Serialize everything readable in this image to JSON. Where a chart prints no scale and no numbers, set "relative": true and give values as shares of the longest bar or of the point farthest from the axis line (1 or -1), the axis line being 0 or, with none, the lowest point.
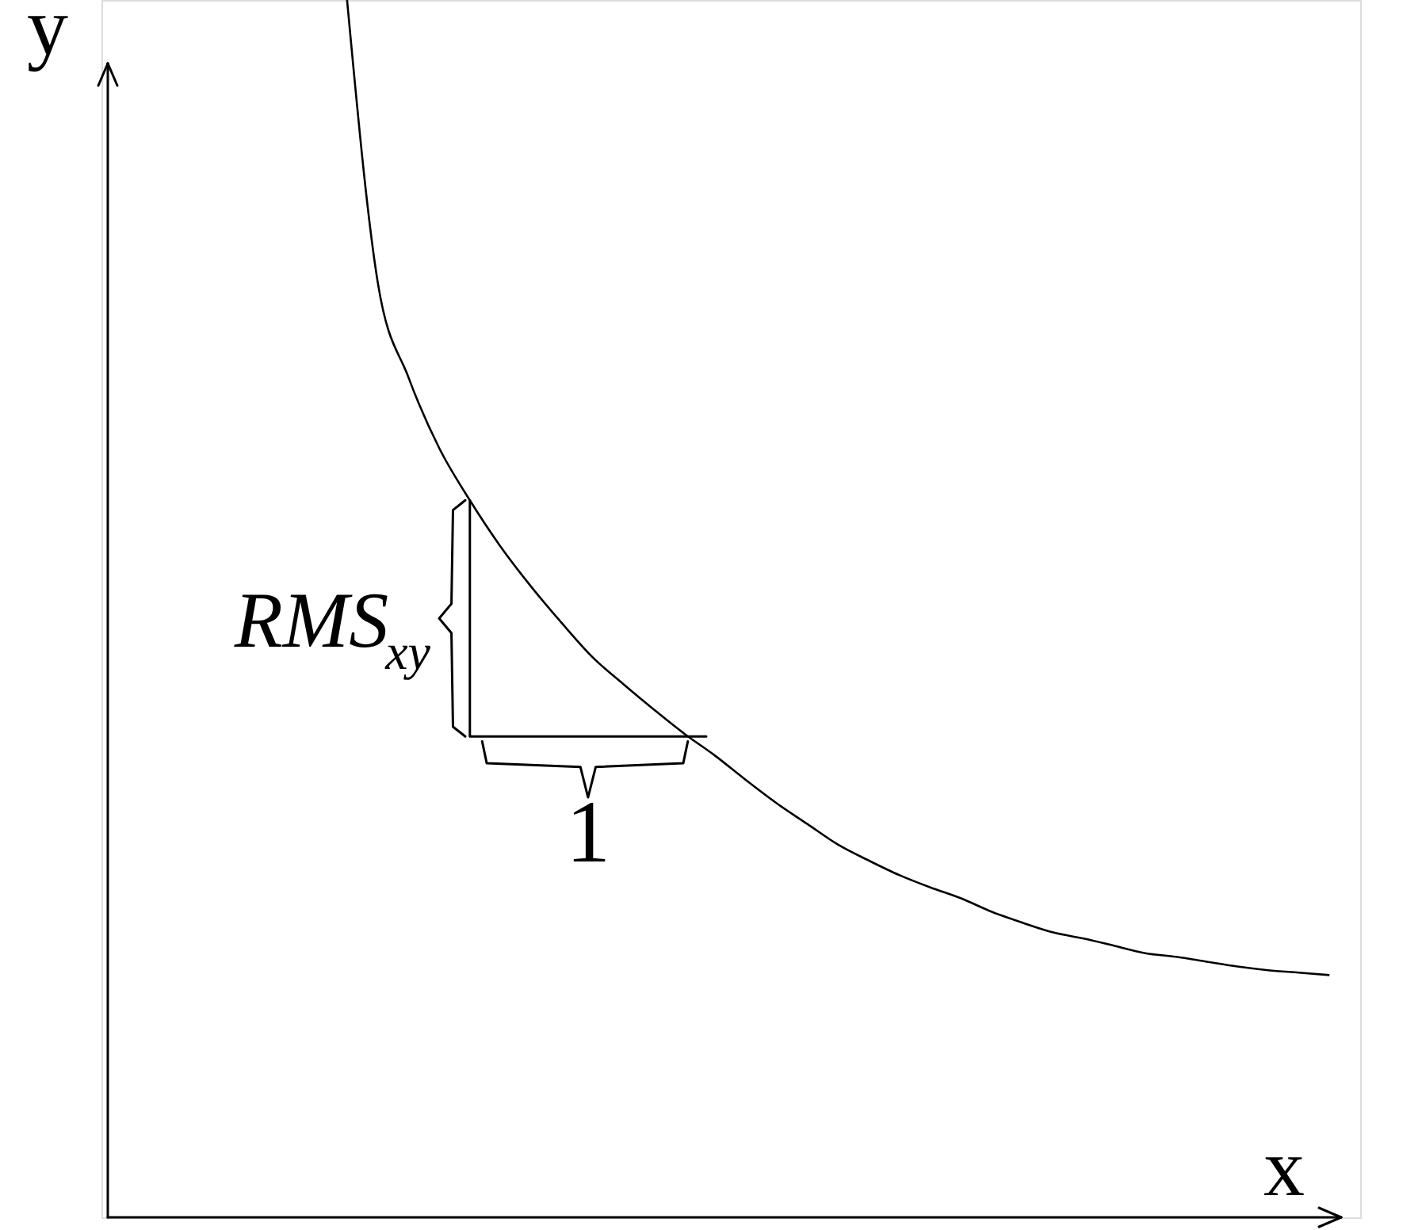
{
  "chart_data": {
    "type": "line",
    "relative": true,
    "xlabel": "x",
    "ylabel": "y",
    "color": "#000000",
    "categories": [
      null,
      null,
      null,
      null,
      null,
      null,
      null,
      null,
      null,
      null,
      null,
      null,
      null,
      null,
      null,
      null,
      null,
      null,
      null,
      null,
      null,
      null,
      null,
      null,
      null,
      null,
      null,
      null,
      null,
      null,
      null,
      null,
      null,
      null,
      null,
      null,
      null,
      null,
      null,
      null,
      null,
      null
    ],
    "values": [
      null,
      null,
      null,
      null,
      null,
      null,
      null,
      null,
      1.0,
      0.768,
      0.69,
      0.632,
      0.589,
      0.551,
      0.518,
      0.488,
      0.46,
      0.438,
      0.417,
      0.397,
      0.379,
      0.359,
      0.34,
      0.323,
      0.306,
      0.293,
      0.281,
      0.271,
      0.262,
      0.251,
      0.242,
      0.234,
      0.229,
      0.223,
      0.217,
      0.214,
      0.21,
      0.206,
      0.203,
      0.201,
      0.199,
      null
    ],
    "annotations": [
      "RMS$_{xy}$",
      "1"
    ]
  }
}
